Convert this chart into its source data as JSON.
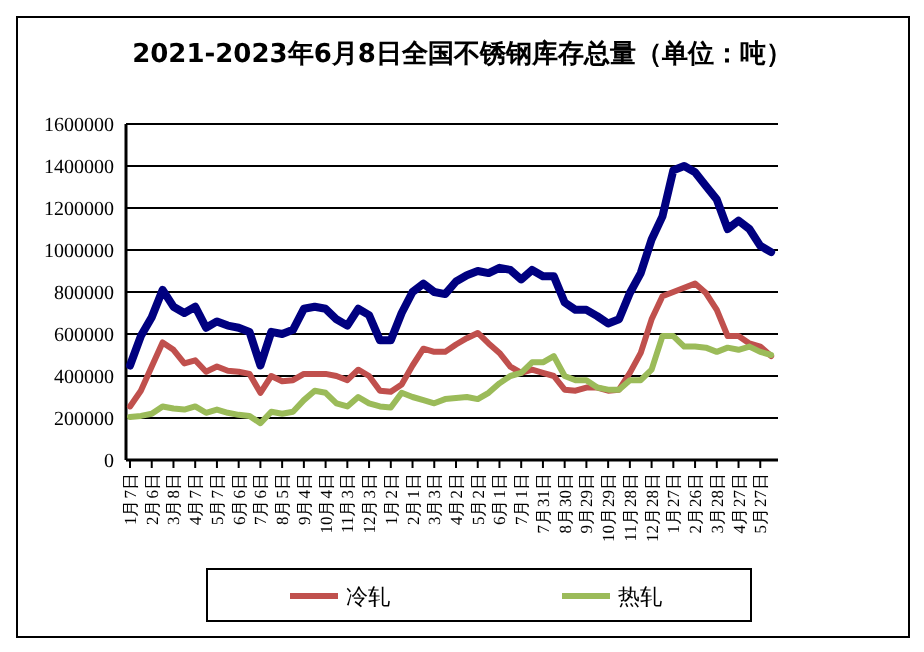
{
  "chart_data": {
    "type": "line",
    "title": "2021-2023年6月8日全国不锈钢库存总量（单位：吨）",
    "categories": [
      "1月7日",
      null,
      "2月6日",
      null,
      "3月8日",
      null,
      "4月7日",
      null,
      "5月7日",
      null,
      "6月6日",
      null,
      "7月6日",
      null,
      "8月5日",
      null,
      "9月4日",
      null,
      "10月4日",
      null,
      "11月3日",
      null,
      "12月3日",
      null,
      "1月2日",
      null,
      "2月1日",
      null,
      "3月3日",
      null,
      "4月2日",
      null,
      "5月2日",
      null,
      "6月1日",
      null,
      "7月1日",
      null,
      "7月31日",
      null,
      "8月30日",
      null,
      "9月29日",
      null,
      "10月29日",
      null,
      "11月28日",
      null,
      "12月28日",
      null,
      "1月27日",
      null,
      "2月26日",
      null,
      "3月28日",
      null,
      "4月27日",
      null,
      "5月27日",
      null
    ],
    "series": [
      {
        "color": "#000080",
        "values": [
          450000,
          590000,
          680000,
          810000,
          730000,
          700000,
          730000,
          630000,
          660000,
          640000,
          630000,
          610000,
          450000,
          610000,
          600000,
          620000,
          720000,
          730000,
          720000,
          670000,
          640000,
          720000,
          690000,
          570000,
          570000,
          700000,
          800000,
          840000,
          800000,
          790000,
          850000,
          880000,
          900000,
          890000,
          915000,
          905000,
          860000,
          905000,
          875000,
          875000,
          750000,
          715000,
          715000,
          685000,
          650000,
          670000,
          795000,
          890000,
          1050000,
          1160000,
          1380000,
          1400000,
          1370000,
          1305000,
          1240000,
          1100000,
          1140000,
          1100000,
          1020000,
          990000
        ]
      },
      {
        "name": "冷轧",
        "color": "#c0504d",
        "values": [
          255000,
          330000,
          445000,
          560000,
          525000,
          460000,
          475000,
          420000,
          445000,
          425000,
          420000,
          410000,
          320000,
          400000,
          375000,
          380000,
          410000,
          410000,
          410000,
          400000,
          380000,
          430000,
          400000,
          330000,
          325000,
          360000,
          450000,
          530000,
          515000,
          515000,
          550000,
          580000,
          605000,
          555000,
          510000,
          445000,
          415000,
          430000,
          415000,
          400000,
          335000,
          330000,
          345000,
          345000,
          330000,
          335000,
          415000,
          510000,
          670000,
          780000,
          800000,
          820000,
          840000,
          795000,
          715000,
          590000,
          590000,
          555000,
          540000,
          495000
        ]
      },
      {
        "name": "热轧",
        "color": "#9bbb59",
        "values": [
          205000,
          210000,
          220000,
          255000,
          245000,
          240000,
          255000,
          225000,
          240000,
          225000,
          215000,
          210000,
          175000,
          230000,
          220000,
          230000,
          285000,
          330000,
          320000,
          270000,
          255000,
          300000,
          270000,
          255000,
          250000,
          320000,
          300000,
          285000,
          270000,
          290000,
          295000,
          300000,
          290000,
          320000,
          365000,
          400000,
          415000,
          465000,
          465000,
          495000,
          400000,
          380000,
          380000,
          345000,
          335000,
          335000,
          380000,
          380000,
          430000,
          590000,
          590000,
          540000,
          540000,
          535000,
          515000,
          535000,
          525000,
          540000,
          515000,
          500000
        ]
      }
    ],
    "ylim": [
      0,
      1600000
    ],
    "yticks": [
      0,
      200000,
      400000,
      600000,
      800000,
      1000000,
      1200000,
      1400000,
      1600000
    ],
    "grid": "y",
    "legend": "bottom"
  }
}
